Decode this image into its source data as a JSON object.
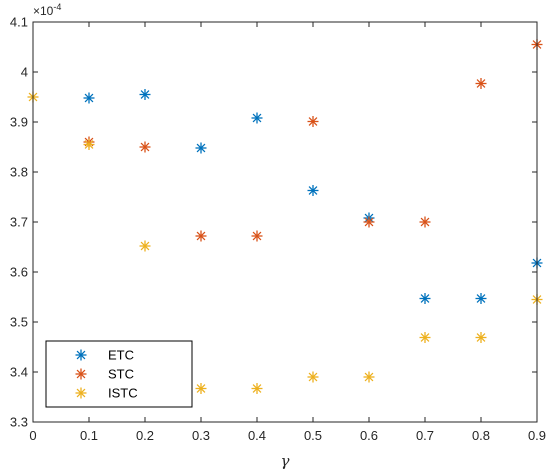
{
  "chart_data": {
    "type": "scatter",
    "title": "",
    "xlabel": "γ",
    "ylabel": "",
    "y_multiplier_label": "×10",
    "y_multiplier_exponent": "-4",
    "xlim": [
      0,
      0.9
    ],
    "ylim": [
      3.3,
      4.1
    ],
    "xticks": [
      0,
      0.1,
      0.2,
      0.3,
      0.4,
      0.5,
      0.6,
      0.7,
      0.8,
      0.9
    ],
    "xtick_labels": [
      "0",
      "0.1",
      "0.2",
      "0.3",
      "0.4",
      "0.5",
      "0.6",
      "0.7",
      "0.8",
      "0.9"
    ],
    "yticks": [
      3.3,
      3.4,
      3.5,
      3.6,
      3.7,
      3.8,
      3.9,
      4.0,
      4.1
    ],
    "ytick_labels": [
      "3.3",
      "3.4",
      "3.5",
      "3.6",
      "3.7",
      "3.8",
      "3.9",
      "4",
      "4.1"
    ],
    "grid": false,
    "marker": "asterisk",
    "legend_position": "bottom-left",
    "series": [
      {
        "name": "ETC",
        "color": "#0072BD",
        "x": [
          0.1,
          0.2,
          0.3,
          0.4,
          0.5,
          0.6,
          0.7,
          0.8,
          0.9
        ],
        "y": [
          3.948,
          3.955,
          3.848,
          3.908,
          3.763,
          3.708,
          3.547,
          3.547,
          3.618
        ]
      },
      {
        "name": "STC",
        "color": "#D95319",
        "x": [
          0.1,
          0.2,
          0.3,
          0.4,
          0.5,
          0.6,
          0.7,
          0.8,
          0.9
        ],
        "y": [
          3.86,
          3.85,
          3.672,
          3.672,
          3.901,
          3.7,
          3.7,
          3.977,
          4.055
        ]
      },
      {
        "name": "ISTC",
        "color": "#EDB120",
        "x": [
          0,
          0.1,
          0.2,
          0.3,
          0.4,
          0.5,
          0.6,
          0.7,
          0.8,
          0.9
        ],
        "y": [
          3.95,
          3.855,
          3.652,
          3.367,
          3.367,
          3.39,
          3.39,
          3.469,
          3.469,
          3.545
        ]
      }
    ]
  }
}
